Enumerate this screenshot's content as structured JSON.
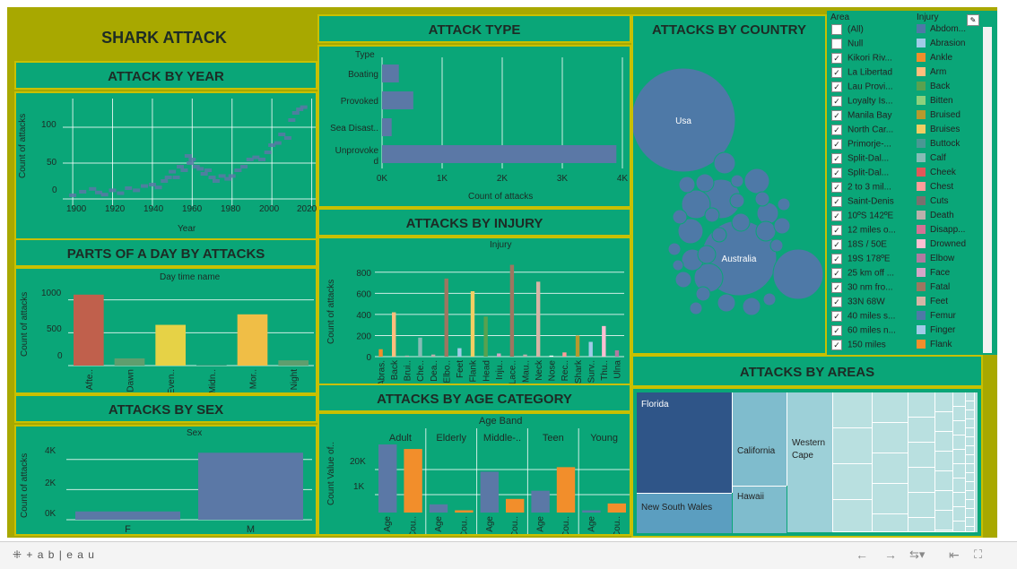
{
  "title": "SHARK ATTACK",
  "by_year": {
    "title": "ATTACK BY YEAR",
    "ylabel": "Count of attacks",
    "xlabel": "Year",
    "xticks": [
      "1900",
      "1920",
      "1940",
      "1960",
      "1980",
      "2000",
      "2020"
    ],
    "yticks": [
      "100",
      "50",
      "0"
    ]
  },
  "type": {
    "title": "ATTACK TYPE",
    "header": "Type",
    "xlabel": "Count of attacks",
    "xticks": [
      "0K",
      "1K",
      "2K",
      "3K",
      "4K"
    ]
  },
  "country": {
    "title": "ATTACKS BY COUNTRY",
    "labels": [
      "Usa",
      "Australia"
    ]
  },
  "parts": {
    "title": "PARTS OF A DAY BY ATTACKS",
    "header": "Day time name",
    "ylabel": "Count of attacks",
    "yticks": [
      "1000",
      "500",
      "0"
    ]
  },
  "injury": {
    "title": "ATTACKS BY INJURY",
    "header": "Injury",
    "ylabel": "Count of attacks",
    "yticks": [
      "800",
      "600",
      "400",
      "200",
      "0"
    ],
    "xticks": [
      "Abras.",
      "Back",
      "Brui..",
      "Che..",
      "Dea..",
      "Elbo..",
      "Feet",
      "Flank",
      "Head",
      "Inju..",
      "Lace..",
      "Mau..",
      "Neck",
      "Nose",
      "Rec..",
      "Shark",
      "Surv..",
      "Thu..",
      "Ulna"
    ]
  },
  "sex": {
    "title": "ATTACKS BY SEX",
    "header": "Sex",
    "ylabel": "Count of attacks",
    "yticks": [
      "4K",
      "2K",
      "0K"
    ]
  },
  "age": {
    "title": "ATTACKS BY AGE CATEGORY",
    "header": "Age Band",
    "ylabel": "Count Value of..",
    "yticks": [
      "20K",
      "1K"
    ],
    "bands": [
      "Adult",
      "Elderly",
      "Middle-..",
      "Teen",
      "Young"
    ],
    "xticks": [
      "Age",
      "Cou.."
    ]
  },
  "areas": {
    "title": "ATTACKS BY AREAS",
    "labels": [
      "Florida",
      "New South Wales",
      "California",
      "Hawaii",
      "Western Cape"
    ]
  },
  "area_filter": {
    "title": "Area",
    "items": [
      {
        "label": "(All)",
        "checked": false
      },
      {
        "label": "Null",
        "checked": false
      },
      {
        "label": "Kikori Riv...",
        "checked": true
      },
      {
        "label": "La Libertad",
        "checked": true
      },
      {
        "label": "Lau Provi...",
        "checked": true
      },
      {
        "label": "Loyalty Is...",
        "checked": true
      },
      {
        "label": "Manila Bay",
        "checked": true
      },
      {
        "label": "North Car...",
        "checked": true
      },
      {
        "label": "Primorje-...",
        "checked": true
      },
      {
        "label": "Split-Dal...",
        "checked": true
      },
      {
        "label": "Split-Dal...",
        "checked": true
      },
      {
        "label": "2 to 3 mil...",
        "checked": true
      },
      {
        "label": "Saint-Denis",
        "checked": true
      },
      {
        "label": "10ºS 142ºE",
        "checked": true
      },
      {
        "label": "12 miles o...",
        "checked": true
      },
      {
        "label": "18S / 50E",
        "checked": true
      },
      {
        "label": "19S 178ºE",
        "checked": true
      },
      {
        "label": "25 km off ...",
        "checked": true
      },
      {
        "label": "30 nm fro...",
        "checked": true
      },
      {
        "label": "33N 68W",
        "checked": true
      },
      {
        "label": "40 miles s...",
        "checked": true
      },
      {
        "label": "60 miles n...",
        "checked": true
      },
      {
        "label": "150 miles",
        "checked": true
      }
    ]
  },
  "injury_legend": {
    "title": "Injury",
    "items": [
      {
        "label": "Abdom...",
        "color": "#4e79a7"
      },
      {
        "label": "Abrasion",
        "color": "#a0cbe8"
      },
      {
        "label": "Ankle",
        "color": "#f28e2b"
      },
      {
        "label": "Arm",
        "color": "#ffbe7d"
      },
      {
        "label": "Back",
        "color": "#59a14f"
      },
      {
        "label": "Bitten",
        "color": "#8cd17d"
      },
      {
        "label": "Bruised",
        "color": "#b6992d"
      },
      {
        "label": "Bruises",
        "color": "#f1ce63"
      },
      {
        "label": "Buttock",
        "color": "#499894"
      },
      {
        "label": "Calf",
        "color": "#86bcb6"
      },
      {
        "label": "Cheek",
        "color": "#e15759"
      },
      {
        "label": "Chest",
        "color": "#ff9d9a"
      },
      {
        "label": "Cuts",
        "color": "#79706e"
      },
      {
        "label": "Death",
        "color": "#bab0ac"
      },
      {
        "label": "Disapp...",
        "color": "#d37295"
      },
      {
        "label": "Drowned",
        "color": "#fabfd2"
      },
      {
        "label": "Elbow",
        "color": "#b07aa1"
      },
      {
        "label": "Face",
        "color": "#d4a6c8"
      },
      {
        "label": "Fatal",
        "color": "#9d7660"
      },
      {
        "label": "Feet",
        "color": "#d7b5a6"
      },
      {
        "label": "Femur",
        "color": "#4e79a7"
      },
      {
        "label": "Finger",
        "color": "#a0cbe8"
      },
      {
        "label": "Flank",
        "color": "#f28e2b"
      }
    ]
  },
  "chart_data": [
    {
      "type": "bar",
      "title": "ATTACK TYPE",
      "categories": [
        "Boating",
        "Provoked",
        "Sea Disast..",
        "Unprovoke d"
      ],
      "values": [
        280,
        520,
        160,
        3900
      ],
      "xlabel": "Count of attacks",
      "xlim": [
        0,
        4000
      ]
    },
    {
      "type": "bar",
      "title": "PARTS OF A DAY BY ATTACKS",
      "categories": [
        "Afte..",
        "Dawn",
        "Even..",
        "Midn..",
        "Mor..",
        "Night"
      ],
      "values": [
        1080,
        110,
        620,
        15,
        780,
        80
      ],
      "colors": [
        "#c0604c",
        "#5f9e6e",
        "#e6d246",
        "#2a9e7a",
        "#f0be46",
        "#5f9e6e"
      ],
      "ylabel": "Count of attacks",
      "ylim": [
        0,
        1200
      ]
    },
    {
      "type": "bar",
      "title": "ATTACKS BY SEX",
      "categories": [
        "F",
        "M"
      ],
      "values": [
        550,
        4450
      ],
      "ylabel": "Count of attacks",
      "ylim": [
        0,
        5000
      ]
    },
    {
      "type": "scatter",
      "title": "ATTACK BY YEAR",
      "x": [
        1900,
        1905,
        1910,
        1913,
        1916,
        1920,
        1924,
        1928,
        1932,
        1936,
        1940,
        1943,
        1946,
        1948,
        1950,
        1952,
        1954,
        1956,
        1958,
        1959,
        1960,
        1962,
        1964,
        1966,
        1968,
        1970,
        1972,
        1975,
        1978,
        1980,
        1983,
        1986,
        1989,
        1992,
        1995,
        1998,
        2000,
        2003,
        2005,
        2008,
        2010,
        2012,
        2014,
        2016
      ],
      "y": [
        5,
        10,
        14,
        9,
        6,
        12,
        8,
        15,
        12,
        18,
        20,
        16,
        25,
        30,
        38,
        30,
        45,
        40,
        60,
        50,
        55,
        45,
        42,
        35,
        40,
        30,
        25,
        32,
        28,
        32,
        40,
        45,
        55,
        58,
        55,
        65,
        75,
        78,
        90,
        85,
        110,
        120,
        125,
        128
      ],
      "xlabel": "Year",
      "ylabel": "Count of attacks",
      "xlim": [
        1895,
        2022
      ],
      "ylim": [
        -10,
        140
      ]
    },
    {
      "type": "bar",
      "title": "ATTACKS BY INJURY",
      "categories": [
        "Abras.",
        "Back",
        "Brui..",
        "Che..",
        "Dea..",
        "Elbo..",
        "Feet",
        "Flank",
        "Head",
        "Inju..",
        "Lace..",
        "Mau..",
        "Neck",
        "Nose",
        "Rec..",
        "Shark",
        "Surv..",
        "Thu..",
        "Ulna"
      ],
      "values": [
        70,
        420,
        10,
        180,
        20,
        740,
        80,
        620,
        380,
        30,
        870,
        20,
        710,
        10,
        40,
        200,
        140,
        290,
        60
      ],
      "ylabel": "Count of attacks",
      "ylim": [
        0,
        900
      ]
    },
    {
      "type": "bar",
      "title": "ATTACKS BY AGE CATEGORY",
      "categories": [
        "Adult",
        "Elderly",
        "Middle-..",
        "Teen",
        "Young"
      ],
      "series": [
        {
          "name": "Age",
          "values": [
            25000,
            3000,
            15000,
            8000,
            800
          ]
        },
        {
          "name": "Cou..",
          "values": [
            280,
            10,
            60,
            200,
            40
          ]
        }
      ],
      "ylabel": "Count Value of.."
    }
  ],
  "status": {
    "brand": "+ a b | e a u"
  }
}
